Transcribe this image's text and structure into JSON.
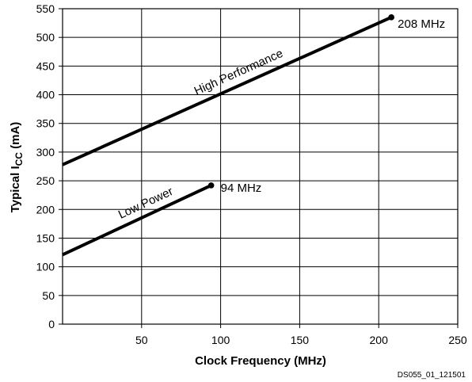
{
  "chart_data": {
    "type": "line",
    "title": "",
    "xlabel": "Clock Frequency (MHz)",
    "ylabel_main": "Typical I",
    "ylabel_sub": "CC",
    "ylabel_unit": " (mA)",
    "xlim": [
      0,
      250
    ],
    "ylim": [
      0,
      550
    ],
    "xticks": [
      50,
      100,
      150,
      200,
      250
    ],
    "yticks": [
      0,
      50,
      100,
      150,
      200,
      250,
      300,
      350,
      400,
      450,
      500,
      550
    ],
    "grid": true,
    "series": [
      {
        "name": "High Performance",
        "x": [
          0,
          208
        ],
        "y": [
          278,
          535
        ],
        "end_label": "208 MHz"
      },
      {
        "name": "Low Power",
        "x": [
          0,
          94
        ],
        "y": [
          121,
          242
        ],
        "end_label": "94 MHz"
      }
    ],
    "footer_code": "DS055_01_121501"
  }
}
